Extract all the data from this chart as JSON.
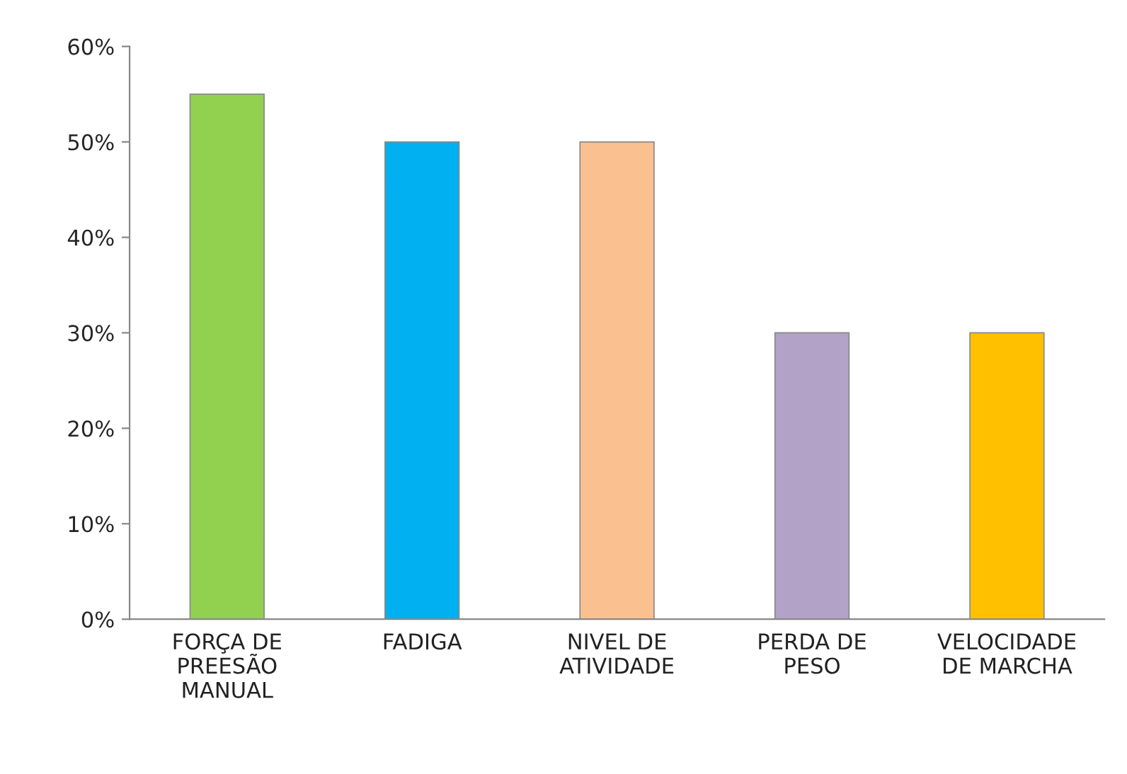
{
  "chart_data": {
    "type": "bar",
    "categories": [
      "FORÇA DE\nPREESÃO\nMANUAL",
      "FADIGA",
      "NIVEL DE\nATIVIDADE",
      "PERDA DE\nPESO",
      "VELOCIDADE\nDE MARCHA"
    ],
    "values": [
      55,
      50,
      50,
      30,
      30
    ],
    "colors": [
      "#92d050",
      "#00b0f0",
      "#fac090",
      "#b3a2c7",
      "#ffc000"
    ],
    "ylim": [
      0,
      60
    ],
    "yticks": [
      {
        "value": 0,
        "label": "0%"
      },
      {
        "value": 10,
        "label": "10%"
      },
      {
        "value": 20,
        "label": "20%"
      },
      {
        "value": 30,
        "label": "30%"
      },
      {
        "value": 40,
        "label": "40%"
      },
      {
        "value": 50,
        "label": "50%"
      },
      {
        "value": 60,
        "label": "60%"
      }
    ],
    "grid": false
  }
}
